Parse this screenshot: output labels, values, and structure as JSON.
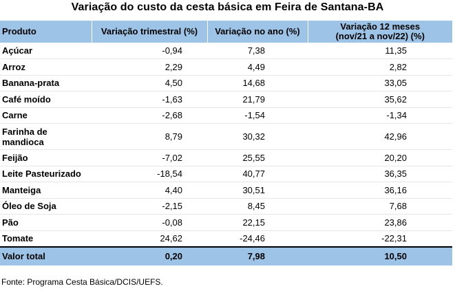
{
  "title": "Variação do custo da cesta básica em Feira de Santana-BA",
  "table": {
    "headers": {
      "produto": "Produto",
      "trimestral": "Variação trimestral (%)",
      "ano": "Variação no ano (%)",
      "doze_meses_line1": "Variação 12 meses",
      "doze_meses_line2": "(nov/21 a nov/22) (%)"
    },
    "rows": [
      {
        "produto": "Açúcar",
        "trimestral": "-0,94",
        "ano": "7,38",
        "doze": "11,35"
      },
      {
        "produto": "Arroz",
        "trimestral": "2,29",
        "ano": "4,49",
        "doze": "2,82"
      },
      {
        "produto": "Banana-prata",
        "trimestral": "4,50",
        "ano": "14,68",
        "doze": "33,05"
      },
      {
        "produto": "Café moído",
        "trimestral": "-1,63",
        "ano": "21,79",
        "doze": "35,62"
      },
      {
        "produto": "Carne",
        "trimestral": "-2,68",
        "ano": "-1,54",
        "doze": "-1,34"
      },
      {
        "produto_line1": "Farinha de",
        "produto_line2": "mandioca",
        "trimestral": "8,79",
        "ano": "30,32",
        "doze": "42,96"
      },
      {
        "produto": "Feijão",
        "trimestral": "-7,02",
        "ano": "25,55",
        "doze": "20,20"
      },
      {
        "produto": "Leite Pasteurizado",
        "trimestral": "-18,54",
        "ano": "40,77",
        "doze": "36,35"
      },
      {
        "produto": "Manteiga",
        "trimestral": "4,40",
        "ano": "30,51",
        "doze": "36,16"
      },
      {
        "produto": "Óleo de Soja",
        "trimestral": "-2,15",
        "ano": "8,45",
        "doze": "7,68"
      },
      {
        "produto": "Pão",
        "trimestral": "-0,08",
        "ano": "22,15",
        "doze": "23,86"
      },
      {
        "produto": "Tomate",
        "trimestral": "24,62",
        "ano": "-24,46",
        "doze": "-22,31"
      }
    ],
    "total": {
      "label": "Valor total",
      "trimestral": "0,20",
      "ano": "7,98",
      "doze": "10,50"
    }
  },
  "source": "Fonte: Programa Cesta Básica/DCIS/UEFS.",
  "colors": {
    "header_bg": "#9dc3e6"
  }
}
